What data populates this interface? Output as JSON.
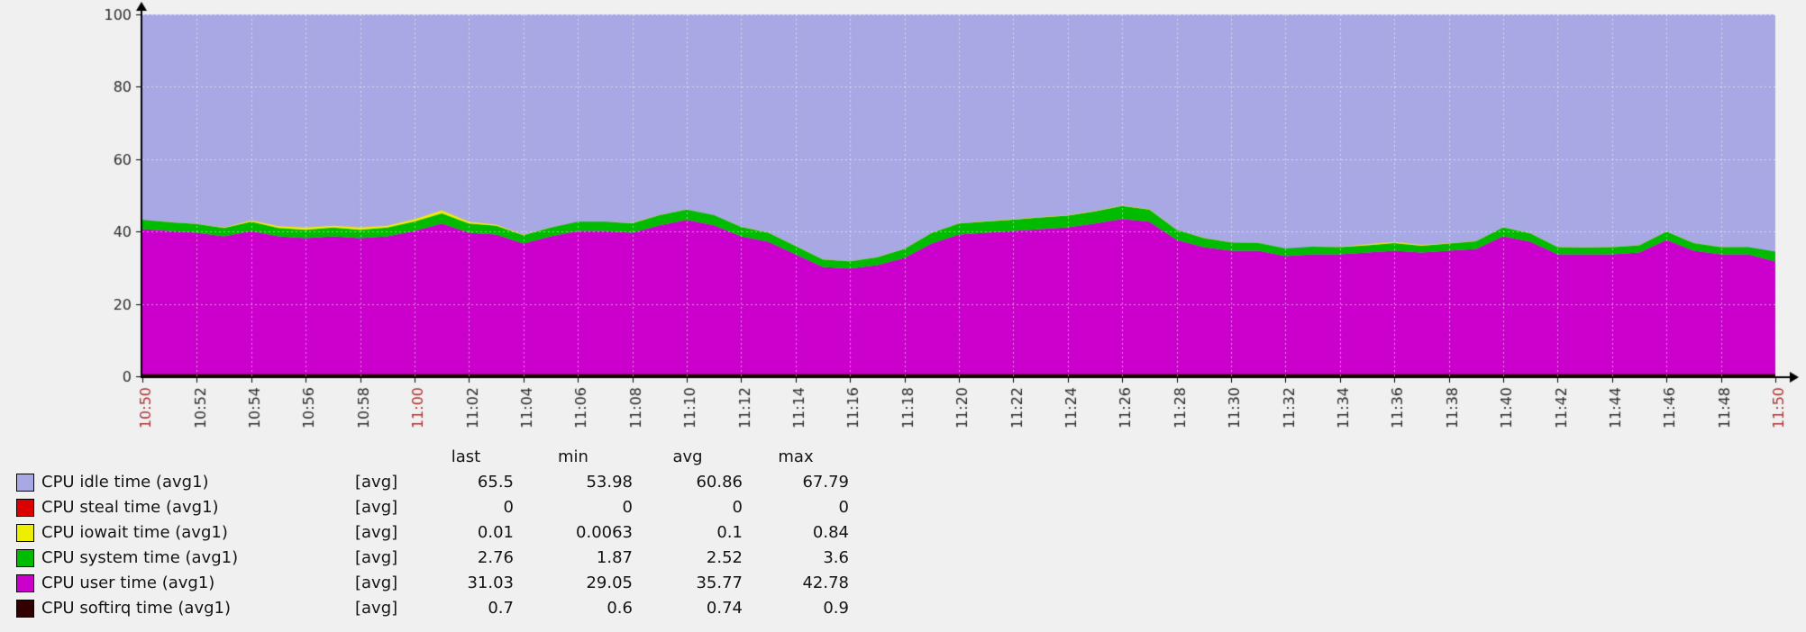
{
  "page": {
    "background": "#f0f0f0"
  },
  "chart_data": {
    "type": "area",
    "stacked": true,
    "title": "",
    "xlabel": "",
    "ylabel": "",
    "ylim": [
      0,
      100
    ],
    "y_ticks": [
      0,
      20,
      40,
      60,
      80,
      100
    ],
    "grid": true,
    "legend_position": "bottom",
    "x_tick_labels": [
      "10:50",
      "10:52",
      "10:54",
      "10:56",
      "10:58",
      "11:00",
      "11:02",
      "11:04",
      "11:06",
      "11:08",
      "11:10",
      "11:12",
      "11:14",
      "11:16",
      "11:18",
      "11:20",
      "11:22",
      "11:24",
      "11:26",
      "11:28",
      "11:30",
      "11:32",
      "11:34",
      "11:36",
      "11:38",
      "11:40",
      "11:42",
      "11:44",
      "11:46",
      "11:48",
      "11:50"
    ],
    "x_tick_red_indices": [
      0,
      5,
      30
    ],
    "colors": {
      "axis": "#000000",
      "grid": "rgba(255,255,255,0.55)",
      "tick_label": "#2a2a2a",
      "tick_label_red": "#aa3333"
    },
    "remainder_series": {
      "name": "CPU idle time (avg1)",
      "color": "#a8a8e4",
      "fills_to": 100
    },
    "stack_series": [
      {
        "name": "CPU softirq time (avg1)",
        "color": "#330000",
        "values": 0.7
      },
      {
        "name": "CPU user time (avg1)",
        "color": "#cc00cc",
        "values": [
          40,
          39.5,
          39,
          38,
          39.5,
          38,
          37.5,
          38,
          37.5,
          38,
          39.5,
          41.5,
          39,
          38.5,
          36,
          38,
          39.5,
          39.5,
          39,
          41,
          42.5,
          41,
          38,
          36.5,
          33,
          29.5,
          29.1,
          30,
          32,
          36,
          38.5,
          39,
          39.5,
          40,
          40.5,
          41.5,
          42.8,
          42,
          37,
          35,
          34,
          34,
          32.5,
          33,
          33,
          33.5,
          34,
          33.5,
          34,
          34.5,
          38,
          36.5,
          33,
          33,
          33,
          33.5,
          37,
          34,
          33,
          33,
          31
        ]
      },
      {
        "name": "CPU system time (avg1)",
        "color": "#00bb00",
        "values": [
          2.5,
          2.4,
          2.4,
          2.3,
          2.5,
          2.3,
          2.3,
          2.4,
          2.3,
          2.4,
          2.6,
          2.8,
          2.5,
          2.4,
          2.3,
          2.4,
          2.5,
          2.5,
          2.6,
          2.8,
          2.9,
          2.8,
          2.6,
          2.5,
          2.3,
          2.1,
          2.0,
          2.2,
          2.5,
          2.9,
          3.0,
          3.1,
          3.1,
          3.2,
          3.2,
          3.4,
          3.6,
          3.4,
          2.8,
          2.5,
          2.3,
          2.2,
          2.1,
          2.1,
          2.0,
          2.0,
          2.1,
          1.9,
          2.0,
          2.1,
          2.5,
          2.3,
          2.0,
          1.9,
          2.0,
          2.0,
          2.3,
          2.1,
          2.0,
          2.0,
          2.76
        ]
      },
      {
        "name": "CPU iowait time (avg1)",
        "color": "#eeee00",
        "values": [
          0.05,
          0.05,
          0.05,
          0.1,
          0.4,
          0.5,
          0.6,
          0.5,
          0.6,
          0.5,
          0.6,
          0.84,
          0.5,
          0.3,
          0.1,
          0.1,
          0.05,
          0.05,
          0.1,
          0.1,
          0.05,
          0.05,
          0.05,
          0.05,
          0.05,
          0.02,
          0.02,
          0.05,
          0.05,
          0.1,
          0.1,
          0.1,
          0.1,
          0.1,
          0.1,
          0.1,
          0.1,
          0.1,
          0.05,
          0.05,
          0.05,
          0.05,
          0.05,
          0.05,
          0.05,
          0.3,
          0.3,
          0.2,
          0.1,
          0.05,
          0.05,
          0.05,
          0.05,
          0.05,
          0.05,
          0.05,
          0.05,
          0.05,
          0.05,
          0.02,
          0.01
        ]
      },
      {
        "name": "CPU steal time (avg1)",
        "color": "#dd0000",
        "values": 0
      }
    ]
  },
  "legend": {
    "headers": {
      "last": "last",
      "min": "min",
      "avg": "avg",
      "max": "max"
    },
    "rows": [
      {
        "label": "CPU idle time (avg1)",
        "mode": "[avg]",
        "color": "#a8a8e4",
        "last": "65.5",
        "min": "53.98",
        "avg": "60.86",
        "max": "67.79"
      },
      {
        "label": "CPU steal time (avg1)",
        "mode": "[avg]",
        "color": "#dd0000",
        "last": "0",
        "min": "0",
        "avg": "0",
        "max": "0"
      },
      {
        "label": "CPU iowait time (avg1)",
        "mode": "[avg]",
        "color": "#eeee00",
        "last": "0.01",
        "min": "0.0063",
        "avg": "0.1",
        "max": "0.84"
      },
      {
        "label": "CPU system time (avg1)",
        "mode": "[avg]",
        "color": "#00bb00",
        "last": "2.76",
        "min": "1.87",
        "avg": "2.52",
        "max": "3.6"
      },
      {
        "label": "CPU user time (avg1)",
        "mode": "[avg]",
        "color": "#cc00cc",
        "last": "31.03",
        "min": "29.05",
        "avg": "35.77",
        "max": "42.78"
      },
      {
        "label": "CPU softirq time (avg1)",
        "mode": "[avg]",
        "color": "#330000",
        "last": "0.7",
        "min": "0.6",
        "avg": "0.74",
        "max": "0.9"
      }
    ]
  }
}
